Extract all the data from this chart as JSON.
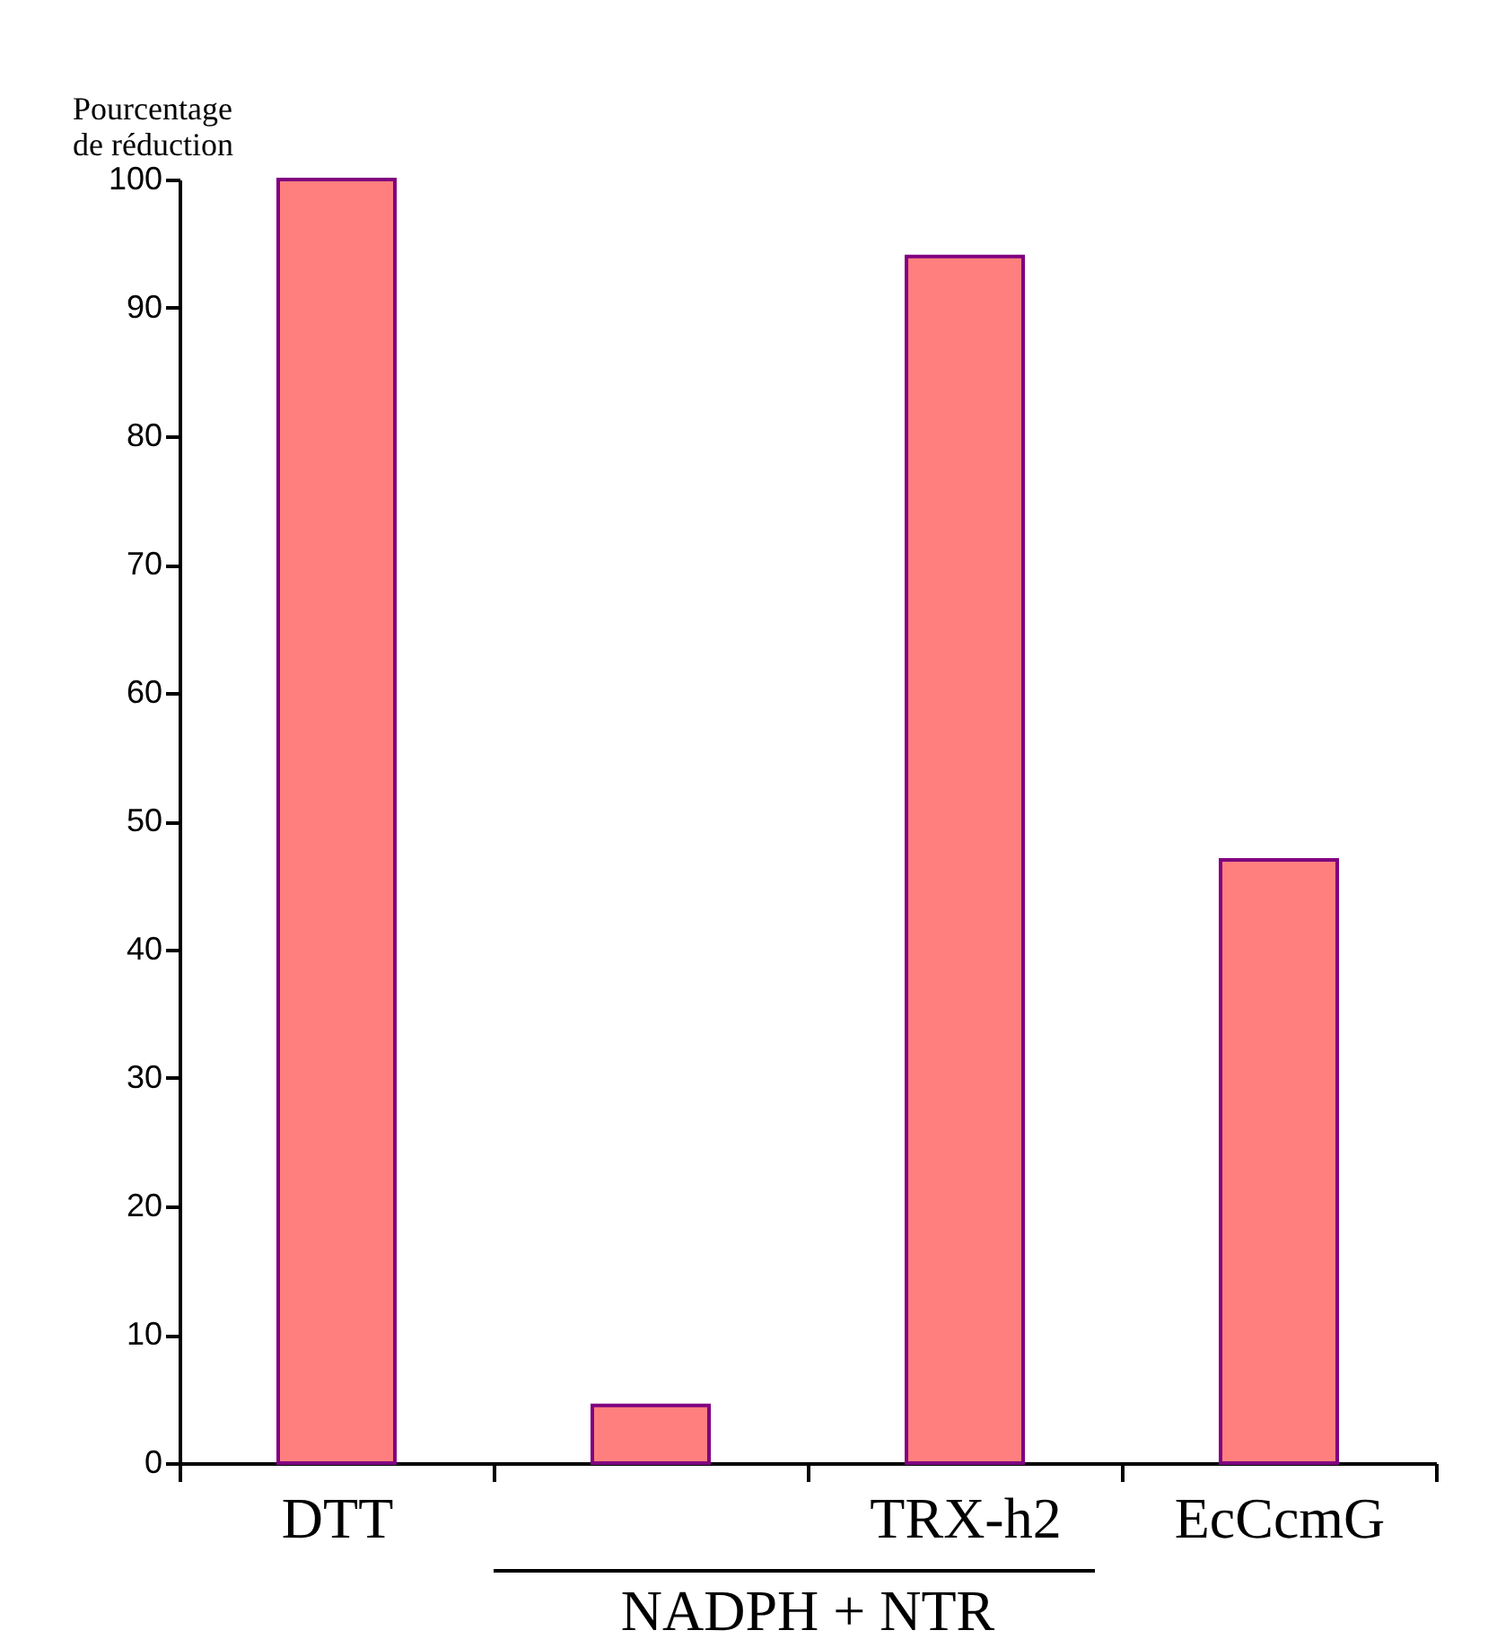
{
  "chart_data": {
    "type": "bar",
    "ylabel": "Pourcentage de réduction",
    "categories": [
      "DTT",
      null,
      "TRX-h2",
      "EcCcmG"
    ],
    "values": [
      100,
      4.5,
      94,
      47
    ],
    "color": "#ff7f7f",
    "ylim": [
      0,
      100
    ],
    "yticks": [
      0,
      10,
      20,
      30,
      40,
      50,
      60,
      70,
      80,
      90,
      100
    ],
    "grid": false,
    "annotations": [
      "NADPH + NTR"
    ]
  }
}
